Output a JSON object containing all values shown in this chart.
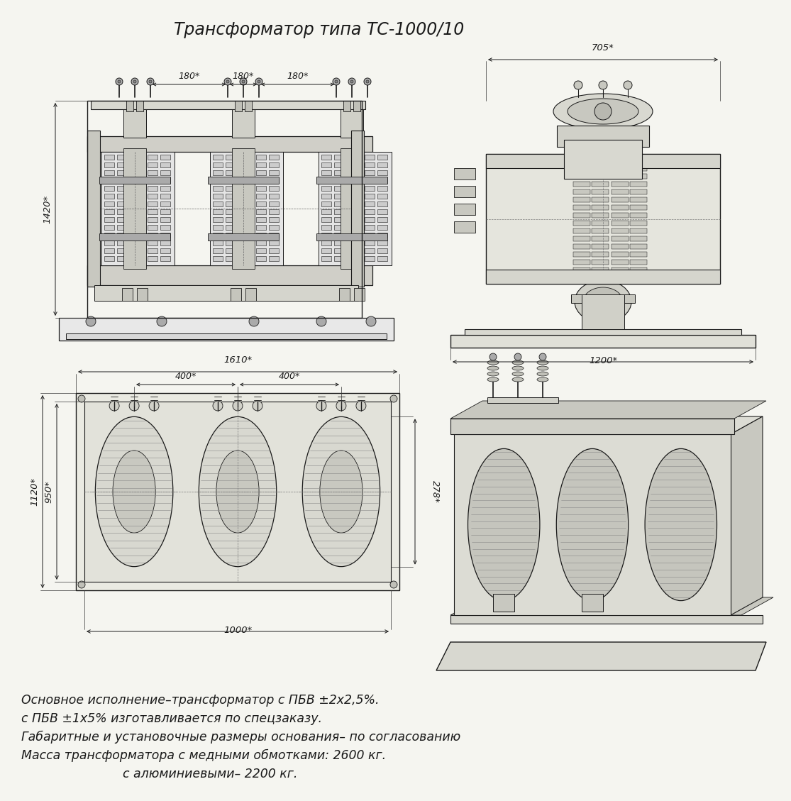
{
  "title": "Трансформатор типа ТС-1000/10",
  "bg_color": "#f5f5f0",
  "line_color": "#1a1a1a",
  "dim_color": "#1a1a1a",
  "notes": [
    "Основное исполнение–трансформатор с ПБВ ±2x2,5%.",
    "с ПБВ ±1x5% изготавливается по спецзаказу.",
    "Габаритные и установочные размеры основания– по согласованию",
    "Масса трансформатора с медными обмотками: 2600 кг.",
    "                          с алюминиевыми– 2200 кг."
  ]
}
